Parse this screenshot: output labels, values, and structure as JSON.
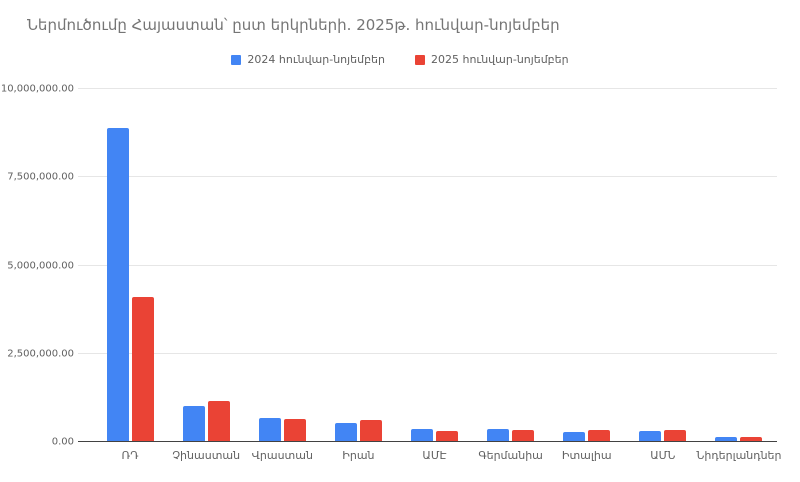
{
  "chart_data": {
    "type": "bar",
    "title": "Ներմուծումը Հայաստան՝ ըստ երկրների. 2025թ. հունվար-նոյեմբեր",
    "categories": [
      "ՌԴ",
      "Չինաստան",
      "Վրաստան",
      "Իրան",
      "ԱՄԷ",
      "Գերմանիա",
      "Իտալիա",
      "ԱՄՆ",
      "Նիդերլանդներ"
    ],
    "series": [
      {
        "name": "2024 հունվար-նոյեմբեր",
        "color": "#4285F4",
        "values": [
          8900000,
          1020000,
          680000,
          540000,
          370000,
          380000,
          280000,
          310000,
          140000
        ]
      },
      {
        "name": "2025 հունվար-նոյեմբեր",
        "color": "#EA4335",
        "values": [
          4100000,
          1170000,
          650000,
          610000,
          310000,
          340000,
          350000,
          350000,
          130000
        ]
      }
    ],
    "xlabel": "",
    "ylabel": "",
    "ylim": [
      0,
      10000000
    ],
    "yticks": [
      0,
      2500000,
      5000000,
      7500000,
      10000000
    ],
    "ytick_labels": [
      "0.00",
      "2,500,000.00",
      "5,000,000.00",
      "7,500,000.00",
      "10,000,000.00"
    ],
    "grid": true,
    "legend_position": "top"
  },
  "colors": {
    "series_2024": "#4285F4",
    "series_2025": "#EA4335",
    "title_text": "#757575",
    "axis_text": "#616161",
    "gridline": "#e6e6e6",
    "baseline": "#424242",
    "background": "#ffffff"
  }
}
